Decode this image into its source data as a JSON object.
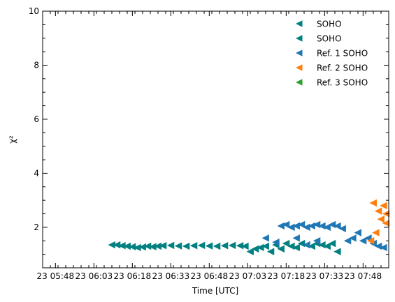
{
  "chart_data": {
    "type": "scatter",
    "marker": "triangle-left",
    "xlabel": "Time [UTC]",
    "ylabel": "χ²",
    "xlim": [
      "23 05:43",
      "23 07:58"
    ],
    "ylim": [
      0.5,
      10
    ],
    "y_ticks": [
      "2",
      "4",
      "6",
      "8",
      "10"
    ],
    "x_tick_labels": [
      "23 05:48",
      "23 06:03",
      "23 06:18",
      "23 06:33",
      "23 06:48",
      "23 07:03",
      "23 07:18",
      "23 07:33",
      "23 07:48"
    ],
    "grid": false,
    "legend_position": "upper-right",
    "legend": [
      {
        "label": "SOHO",
        "color": "#008080"
      },
      {
        "label": "SOHO",
        "color": "#008080"
      },
      {
        "label": "Ref. 1 SOHO",
        "color": "#1f77b4"
      },
      {
        "label": "Ref. 2 SOHO",
        "color": "#ff7f0e"
      },
      {
        "label": "Ref. 3 SOHO",
        "color": "#2ca02c"
      }
    ],
    "series": [
      {
        "name": "SOHO",
        "color": "#008080",
        "points": [
          [
            "23 06:10",
            1.35
          ],
          [
            "23 06:12",
            1.35
          ],
          [
            "23 06:14",
            1.32
          ],
          [
            "23 06:16",
            1.3
          ],
          [
            "23 06:18",
            1.28
          ],
          [
            "23 06:20",
            1.25
          ],
          [
            "23 06:22",
            1.27
          ],
          [
            "23 06:24",
            1.3
          ],
          [
            "23 06:26",
            1.28
          ],
          [
            "23 06:28",
            1.3
          ],
          [
            "23 06:30",
            1.32
          ],
          [
            "23 06:33",
            1.33
          ],
          [
            "23 06:36",
            1.31
          ],
          [
            "23 06:39",
            1.3
          ],
          [
            "23 06:42",
            1.32
          ],
          [
            "23 06:45",
            1.33
          ],
          [
            "23 06:48",
            1.31
          ],
          [
            "23 06:51",
            1.3
          ],
          [
            "23 06:54",
            1.32
          ],
          [
            "23 06:57",
            1.33
          ],
          [
            "23 07:00",
            1.32
          ],
          [
            "23 07:02",
            1.3
          ],
          [
            "23 07:04",
            1.1
          ],
          [
            "23 07:06",
            1.2
          ],
          [
            "23 07:08",
            1.25
          ],
          [
            "23 07:10",
            1.3
          ],
          [
            "23 07:12",
            1.1
          ],
          [
            "23 07:14",
            1.35
          ],
          [
            "23 07:16",
            1.2
          ],
          [
            "23 07:18",
            1.4
          ],
          [
            "23 07:20",
            1.3
          ],
          [
            "23 07:22",
            1.25
          ],
          [
            "23 07:24",
            1.4
          ],
          [
            "23 07:26",
            1.35
          ],
          [
            "23 07:28",
            1.3
          ],
          [
            "23 07:30",
            1.4
          ],
          [
            "23 07:32",
            1.35
          ],
          [
            "23 07:34",
            1.3
          ],
          [
            "23 07:36",
            1.4
          ],
          [
            "23 07:38",
            1.1
          ]
        ]
      },
      {
        "name": "Ref. 1 SOHO",
        "color": "#1f77b4",
        "points": [
          [
            "23 07:16",
            2.05
          ],
          [
            "23 07:18",
            2.1
          ],
          [
            "23 07:20",
            2.0
          ],
          [
            "23 07:22",
            2.05
          ],
          [
            "23 07:24",
            2.1
          ],
          [
            "23 07:26",
            2.0
          ],
          [
            "23 07:28",
            2.05
          ],
          [
            "23 07:30",
            2.1
          ],
          [
            "23 07:32",
            2.05
          ],
          [
            "23 07:34",
            2.0
          ],
          [
            "23 07:36",
            2.1
          ],
          [
            "23 07:38",
            2.05
          ],
          [
            "23 07:40",
            1.95
          ],
          [
            "23 07:42",
            1.5
          ],
          [
            "23 07:44",
            1.6
          ],
          [
            "23 07:46",
            1.8
          ],
          [
            "23 07:48",
            1.5
          ],
          [
            "23 07:50",
            1.6
          ],
          [
            "23 07:52",
            1.4
          ],
          [
            "23 07:54",
            1.3
          ],
          [
            "23 07:56",
            1.25
          ],
          [
            "23 07:10",
            1.6
          ],
          [
            "23 07:14",
            1.45
          ],
          [
            "23 07:22",
            1.6
          ],
          [
            "23 07:26",
            1.35
          ],
          [
            "23 07:30",
            1.5
          ]
        ]
      },
      {
        "name": "Ref. 2 SOHO",
        "color": "#ff7f0e",
        "points": [
          [
            "23 07:52",
            2.9
          ],
          [
            "23 07:54",
            2.6
          ],
          [
            "23 07:56",
            2.8
          ],
          [
            "23 07:57",
            2.5
          ],
          [
            "23 07:55",
            2.3
          ],
          [
            "23 07:57",
            2.15
          ],
          [
            "23 07:53",
            1.8
          ],
          [
            "23 07:51",
            1.5
          ]
        ]
      }
    ]
  }
}
